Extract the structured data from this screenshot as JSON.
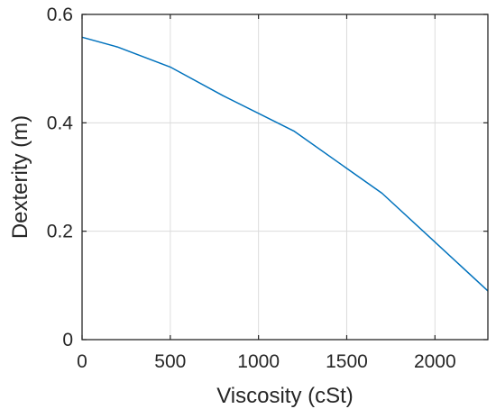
{
  "chart_data": {
    "type": "line",
    "title": "",
    "xlabel": "Viscosity (cSt)",
    "ylabel": "Dexterity (m)",
    "xlim": [
      0,
      2300
    ],
    "ylim": [
      0,
      0.6
    ],
    "xticks": [
      0,
      500,
      1000,
      1500,
      2000
    ],
    "yticks": [
      0,
      0.2,
      0.4,
      0.6
    ],
    "xtick_labels": [
      "0",
      "500",
      "1000",
      "1500",
      "2000"
    ],
    "ytick_labels": [
      "0",
      "0.2",
      "0.4",
      "0.6"
    ],
    "grid": true,
    "legend": "none",
    "series": [
      {
        "color": "#0072BD",
        "x": [
          0,
          200,
          500,
          800,
          1200,
          1700,
          2000,
          2300
        ],
        "y": [
          0.558,
          0.54,
          0.503,
          0.45,
          0.385,
          0.27,
          0.18,
          0.09
        ]
      }
    ]
  }
}
